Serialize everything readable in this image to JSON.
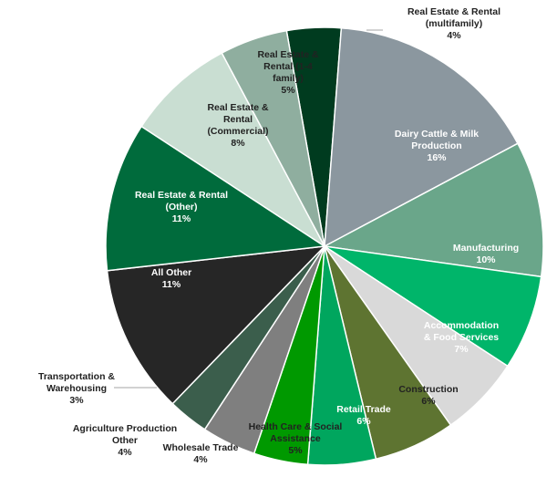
{
  "chart_data": {
    "type": "pie",
    "title": "",
    "start_angle_deg": -10,
    "direction": "clockwise",
    "slices": [
      {
        "label": [
          "Real Estate & Rental",
          "(multifamily)",
          "4%"
        ],
        "value": 4,
        "color": "#003b1f",
        "label_color": "#222222"
      },
      {
        "label": [
          "Dairy Cattle & Milk",
          "Production",
          "16%"
        ],
        "value": 16,
        "color": "#8b979f",
        "label_color": "#ffffff"
      },
      {
        "label": [
          "Manufacturing",
          "10%"
        ],
        "value": 10,
        "color": "#6aa68a",
        "label_color": "#ffffff"
      },
      {
        "label": [
          "Accommodation",
          "& Food Services",
          "7%"
        ],
        "value": 7,
        "color": "#00b56a",
        "label_color": "#ffffff"
      },
      {
        "label": [
          "Construction",
          "6%"
        ],
        "value": 6,
        "color": "#d9d9d9",
        "label_color": "#222222"
      },
      {
        "label": [
          "Retail Trade",
          "6%"
        ],
        "value": 6,
        "color": "#5e7431",
        "label_color": "#ffffff"
      },
      {
        "label": [
          "Health Care & Social",
          "Assistance",
          "5%"
        ],
        "value": 5,
        "color": "#00a65e",
        "label_color": "#222222"
      },
      {
        "label": [
          "Wholesale Trade",
          "4%"
        ],
        "value": 4,
        "color": "#009900",
        "label_color": "#222222"
      },
      {
        "label": [
          "Agriculture Production",
          "Other",
          "4%"
        ],
        "value": 4,
        "color": "#7f7f7f",
        "label_color": "#222222"
      },
      {
        "label": [
          "Transportation &",
          "Warehousing",
          "3%"
        ],
        "value": 3,
        "color": "#3b5e4c",
        "label_color": "#222222"
      },
      {
        "label": [
          "All Other",
          "11%"
        ],
        "value": 11,
        "color": "#262626",
        "label_color": "#ffffff"
      },
      {
        "label": [
          "Real Estate & Rental",
          "(Other)",
          "11%"
        ],
        "value": 11,
        "color": "#006b3c",
        "label_color": "#ffffff"
      },
      {
        "label": [
          "Real Estate &",
          "Rental",
          "(Commercial)",
          "8%"
        ],
        "value": 8,
        "color": "#c9ded2",
        "label_color": "#222222"
      },
      {
        "label": [
          "Real Estate &",
          "Rental (1-4",
          "family)",
          "5%"
        ],
        "value": 5,
        "color": "#8fae9f",
        "label_color": "#222222"
      }
    ]
  }
}
